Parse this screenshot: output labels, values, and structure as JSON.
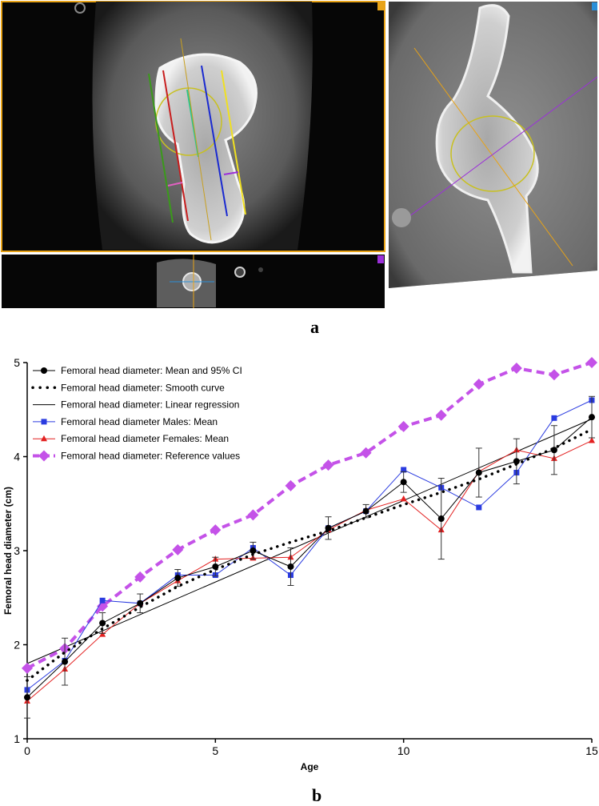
{
  "panel_labels": {
    "a": "a",
    "b": "b"
  },
  "ct_panel": {
    "views": [
      "coronal",
      "axial",
      "sagittal"
    ],
    "marker_colors": {
      "coronal": "#e8a317",
      "axial": "#9b30d9",
      "sagittal": "#2a8fd8"
    },
    "line_colors": [
      "#3a9a1a",
      "#c81e1e",
      "#2ec48a",
      "#1a2ad0",
      "#f0e020",
      "#c8a020",
      "#9b30d9"
    ]
  },
  "chart_data": {
    "type": "line",
    "xlabel": "Age",
    "ylabel": "Femoral head diameter (cm)",
    "xlim": [
      0,
      15
    ],
    "ylim": [
      1,
      5
    ],
    "x_ticks": [
      0,
      5,
      10,
      15
    ],
    "y_ticks": [
      1,
      2,
      3,
      4,
      5
    ],
    "legend_position": "top-left",
    "series": [
      {
        "name": "Femoral head diameter: Mean and 95% CI",
        "color": "#000000",
        "x": [
          0,
          1,
          2,
          3,
          4,
          5,
          6,
          7,
          8,
          9,
          10,
          11,
          12,
          13,
          14,
          15
        ],
        "values": [
          1.44,
          1.82,
          2.23,
          2.44,
          2.71,
          2.83,
          3.0,
          2.83,
          3.24,
          3.42,
          3.73,
          3.34,
          3.83,
          3.95,
          4.07,
          4.42
        ],
        "ci_low": [
          1.22,
          1.57,
          2.12,
          2.34,
          2.62,
          2.73,
          2.91,
          2.63,
          3.12,
          3.35,
          3.62,
          2.91,
          3.57,
          3.71,
          3.81,
          4.2
        ],
        "ci_high": [
          1.66,
          2.07,
          2.34,
          2.54,
          2.8,
          2.93,
          3.09,
          3.03,
          3.36,
          3.49,
          3.84,
          3.77,
          4.09,
          4.19,
          4.33,
          4.64
        ]
      },
      {
        "name": "Femoral head diameter: Smooth curve",
        "color": "#000000",
        "x": [
          0,
          1,
          2,
          3,
          4,
          5,
          6,
          7,
          8,
          9,
          10,
          11,
          12,
          13,
          14,
          15
        ],
        "values": [
          1.62,
          1.92,
          2.17,
          2.4,
          2.62,
          2.8,
          2.96,
          3.09,
          3.21,
          3.35,
          3.49,
          3.62,
          3.76,
          3.92,
          4.09,
          4.29
        ]
      },
      {
        "name": "Femoral head diameter: Linear regression",
        "color": "#000000",
        "x": [
          0,
          15
        ],
        "values": [
          1.8,
          4.4
        ]
      },
      {
        "name": "Femoral head diameter Males: Mean",
        "color": "#2a3be0",
        "x": [
          0,
          1,
          2,
          3,
          4,
          5,
          6,
          7,
          8,
          9,
          10,
          11,
          12,
          13,
          14,
          15
        ],
        "values": [
          1.52,
          1.83,
          2.47,
          2.44,
          2.74,
          2.74,
          3.03,
          2.74,
          3.24,
          3.42,
          3.86,
          3.67,
          3.46,
          3.83,
          4.41,
          4.6
        ]
      },
      {
        "name": "Femoral head diameter Females: Mean",
        "color": "#e32121",
        "x": [
          0,
          1,
          2,
          3,
          4,
          5,
          6,
          7,
          8,
          9,
          10,
          11,
          12,
          13,
          14,
          15
        ],
        "values": [
          1.4,
          1.74,
          2.11,
          2.44,
          2.68,
          2.91,
          2.92,
          2.93,
          3.22,
          3.43,
          3.55,
          3.22,
          3.84,
          4.07,
          3.98,
          4.17
        ]
      },
      {
        "name": "Femoral head diameter: Reference values",
        "color": "#c452e8",
        "x": [
          0,
          1,
          2,
          3,
          4,
          5,
          6,
          7,
          8,
          9,
          10,
          11,
          12,
          13,
          14,
          15
        ],
        "values": [
          1.75,
          1.96,
          2.41,
          2.72,
          3.01,
          3.22,
          3.38,
          3.69,
          3.91,
          4.04,
          4.32,
          4.44,
          4.77,
          4.94,
          4.87,
          5.0
        ]
      }
    ]
  }
}
